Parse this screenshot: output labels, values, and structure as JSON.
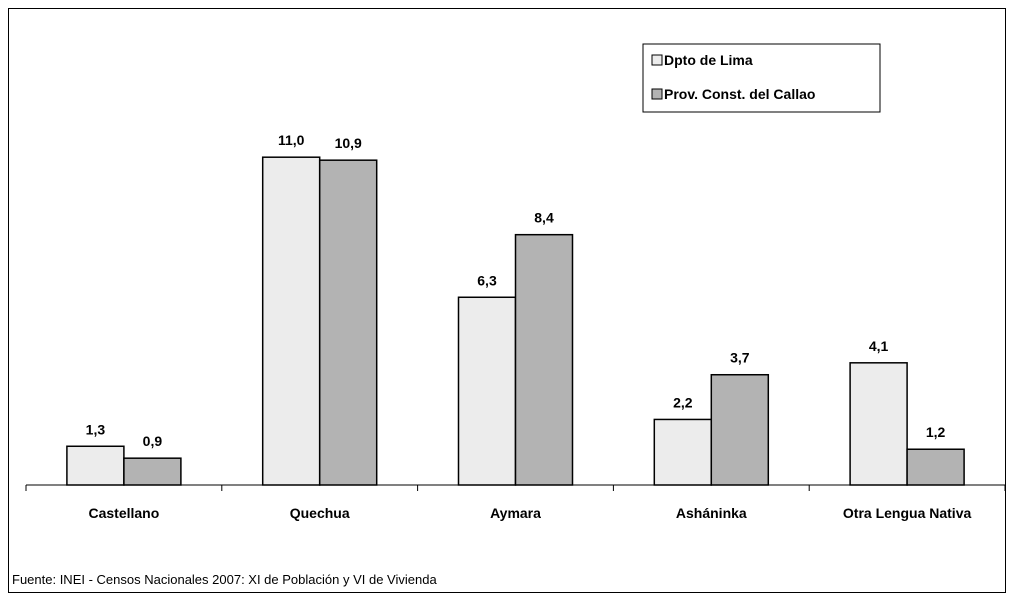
{
  "chart_data": {
    "type": "bar",
    "title": "",
    "xlabel": "",
    "ylabel": "",
    "categories": [
      "Castellano",
      "Quechua",
      "Aymara",
      "Asháninka",
      "Otra Lengua Nativa"
    ],
    "series": [
      {
        "name": "Dpto de Lima",
        "values": [
          1.3,
          11.0,
          6.3,
          2.2,
          4.1
        ],
        "labels": [
          "1,3",
          "11,0",
          "6,3",
          "2,2",
          "4,1"
        ],
        "color": "#ececec"
      },
      {
        "name": "Prov. Const. del Callao",
        "values": [
          0.9,
          10.9,
          8.4,
          3.7,
          1.2
        ],
        "labels": [
          "0,9",
          "10,9",
          "8,4",
          "3,7",
          "1,2"
        ],
        "color": "#b3b3b3"
      }
    ],
    "ylim": [
      0,
      12
    ],
    "grid": false,
    "legend_position": "top-right"
  },
  "source": "Fuente: INEI - Censos Nacionales 2007: XI de Población y VI de Vivienda"
}
